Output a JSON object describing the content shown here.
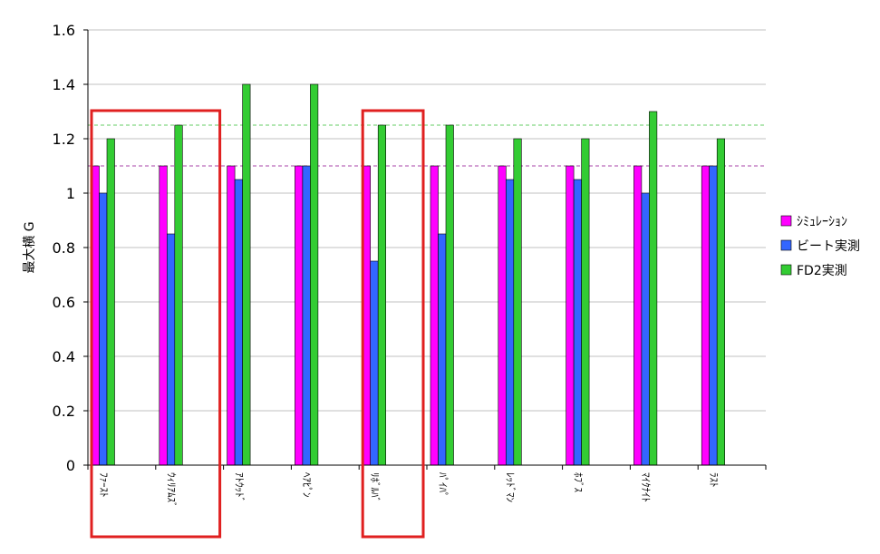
{
  "chart_data": {
    "type": "bar",
    "title": "",
    "xlabel": "",
    "ylabel": "最大横 G",
    "ylim": [
      0,
      1.6
    ],
    "yticks": [
      "0",
      "0.2",
      "0.4",
      "0.6",
      "0.8",
      "1",
      "1.2",
      "1.4",
      "1.6"
    ],
    "grid": true,
    "legend_position": "right",
    "categories": [
      "ﾌｧｰｽﾄ",
      "ｳｨﾘｱﾑｽﾞ",
      "ｱﾄｳｯﾄﾞ",
      "ﾍｱﾋﾟﾝ",
      "ﾘﾎﾞﾙﾊﾞ",
      "ﾊﾟｲﾊﾟ",
      "ﾚｯﾄﾞﾏﾝ",
      "ﾎﾌﾞｽ",
      "ﾏｲｸﾅｲﾄ",
      "ﾗｽﾄ"
    ],
    "series": [
      {
        "name": "ｼﾐｭﾚｰｼｮﾝ",
        "color": "#ff00ff",
        "values": [
          1.1,
          1.1,
          1.1,
          1.1,
          1.1,
          1.1,
          1.1,
          1.1,
          1.1,
          1.1
        ]
      },
      {
        "name": "ビート実測",
        "color": "#3366ff",
        "values": [
          1.0,
          0.85,
          1.05,
          1.1,
          0.75,
          0.85,
          1.05,
          1.05,
          1.0,
          1.1
        ]
      },
      {
        "name": "FD2実測",
        "color": "#33cc33",
        "values": [
          1.2,
          1.25,
          1.4,
          1.4,
          1.25,
          1.25,
          1.2,
          1.2,
          1.3,
          1.2
        ]
      }
    ],
    "reference_lines": [
      {
        "value": 1.25,
        "color": "#66cc66",
        "style": "dashed"
      },
      {
        "value": 1.1,
        "color": "#aa44aa",
        "style": "dashed"
      }
    ],
    "highlight_boxes": [
      {
        "categories": [
          0,
          1
        ],
        "color": "#e02020"
      },
      {
        "categories": [
          4
        ],
        "color": "#e02020"
      }
    ]
  }
}
